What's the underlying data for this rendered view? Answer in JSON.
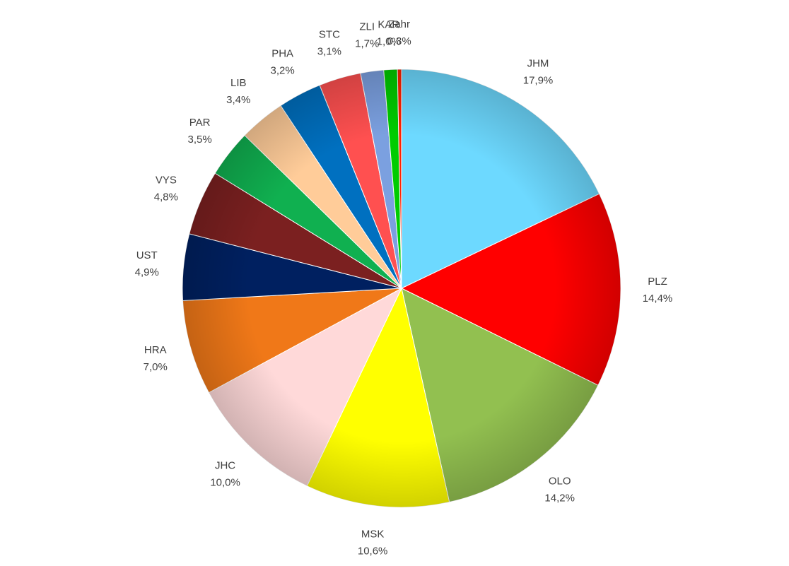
{
  "chart_data": {
    "type": "pie",
    "categories": [
      "JHM",
      "PLZ",
      "OLO",
      "MSK",
      "JHC",
      "HRA",
      "UST",
      "VYS",
      "PAR",
      "LIB",
      "PHA",
      "STC",
      "ZLI",
      "KAR",
      "Zahr"
    ],
    "values": [
      17.9,
      14.4,
      14.2,
      10.6,
      10.0,
      7.0,
      4.9,
      4.8,
      3.5,
      3.4,
      3.2,
      3.1,
      1.7,
      1.0,
      0.3
    ],
    "value_labels": [
      "17,9%",
      "14,4%",
      "14,2%",
      "10,6%",
      "10,0%",
      "7,0%",
      "4,9%",
      "4,8%",
      "3,5%",
      "3,4%",
      "3,2%",
      "3,1%",
      "1,7%",
      "1,0%",
      "0,3%"
    ],
    "colors": [
      "#6dd9ff",
      "#ff0000",
      "#92c050",
      "#ffff00",
      "#ffd9d9",
      "#f07818",
      "#002060",
      "#7b2020",
      "#10b050",
      "#ffcc99",
      "#0070c0",
      "#ff5050",
      "#7ba0e0",
      "#00cc00",
      "#ff2000"
    ]
  }
}
